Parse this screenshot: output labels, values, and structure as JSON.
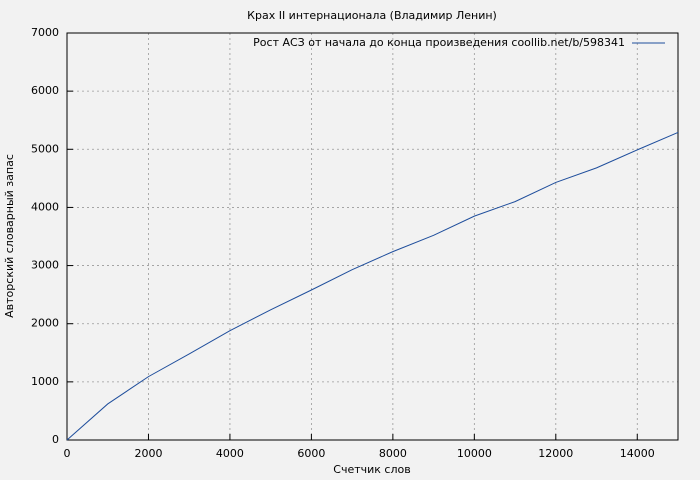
{
  "chart_data": {
    "type": "line",
    "title": "Крах II интернационала (Владимир Ленин)",
    "x_label": "Счетчик слов",
    "y_label": "Авторский словарный запас",
    "x": [
      0,
      1000,
      2000,
      3000,
      4000,
      5000,
      6000,
      7000,
      8000,
      9000,
      10000,
      11000,
      12000,
      13000,
      14000,
      15000
    ],
    "series": [
      {
        "name": "Рост АСЗ от начала до конца произведения coollib.net/b/598341",
        "color": "#1f4e9c",
        "values": [
          0,
          620,
          1090,
          1480,
          1880,
          2240,
          2580,
          2930,
          3240,
          3520,
          3850,
          4100,
          4430,
          4680,
          4990,
          5290
        ]
      }
    ],
    "xlim": [
      0,
      15000
    ],
    "ylim": [
      0,
      7000
    ],
    "xticks": [
      0,
      2000,
      4000,
      6000,
      8000,
      10000,
      12000,
      14000
    ],
    "yticks": [
      0,
      1000,
      2000,
      3000,
      4000,
      5000,
      6000,
      7000
    ],
    "grid": true,
    "legend": "top-right"
  }
}
